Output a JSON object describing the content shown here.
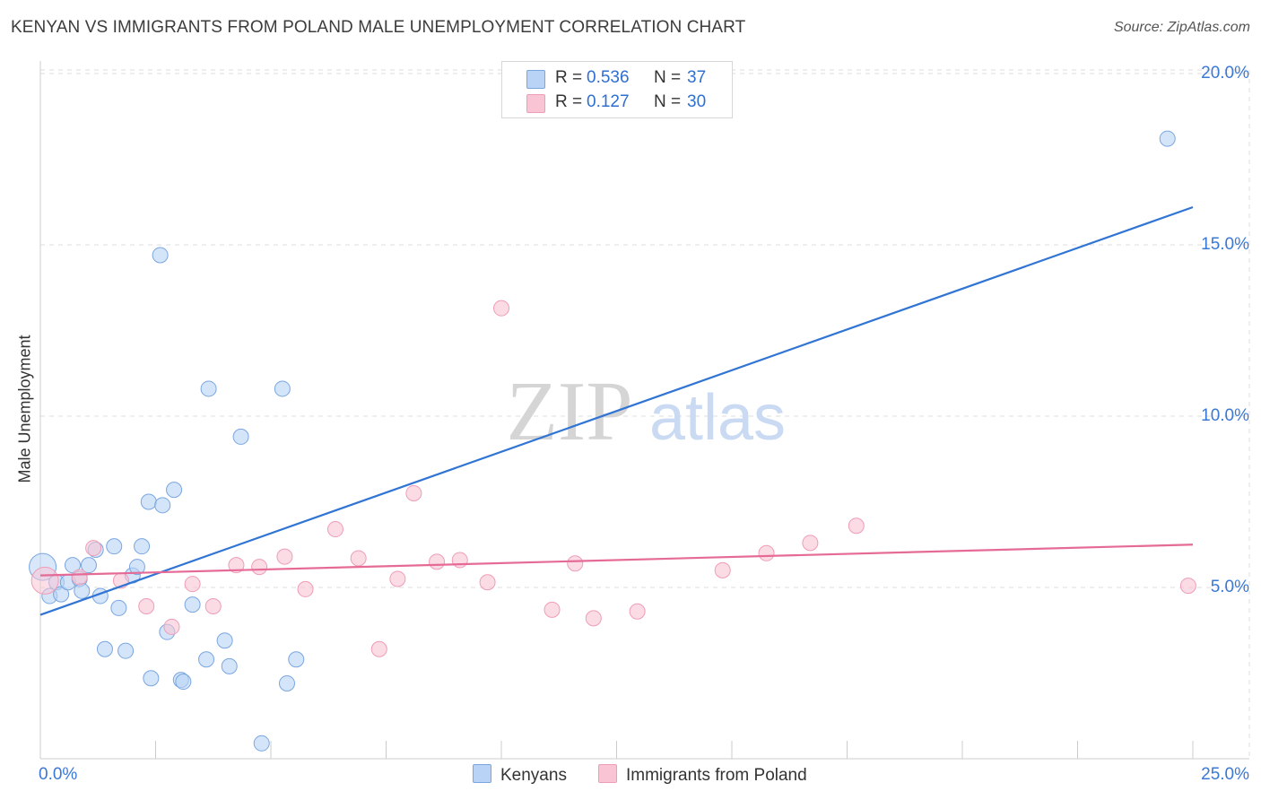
{
  "header": {
    "title": "KENYAN VS IMMIGRANTS FROM POLAND MALE UNEMPLOYMENT CORRELATION CHART",
    "source": "Source: ZipAtlas.com"
  },
  "watermark": {
    "zip": "ZIP",
    "atlas": "atlas"
  },
  "legend": {
    "rows": [
      {
        "r_label": "R =",
        "r_value": "0.536",
        "n_label": "N =",
        "n_value": "37"
      },
      {
        "r_label": "R =",
        "r_value": "0.127",
        "n_label": "N =",
        "n_value": "30"
      }
    ]
  },
  "bottom_legend": {
    "series1": "Kenyans",
    "series2": "Immigrants from Poland"
  },
  "colors": {
    "kenyans_fill": "#b8d3f5",
    "kenyans_stroke": "#7aa6e0",
    "kenyans_line": "#3074d4",
    "poland_fill": "#f9c4d4",
    "poland_stroke": "#ef9db6",
    "poland_line": "#e56b96",
    "axis_text": "#3a78d6",
    "grid": "#dddddd"
  },
  "chart_data": {
    "type": "scatter",
    "title": "KENYAN VS IMMIGRANTS FROM POLAND MALE UNEMPLOYMENT CORRELATION CHART",
    "xlabel": "",
    "ylabel": "Male Unemployment",
    "xlim": [
      0,
      25
    ],
    "ylim": [
      0,
      20
    ],
    "x_tick_labels": [
      "0.0%",
      "25.0%"
    ],
    "y_ticks": [
      5,
      10,
      15,
      20
    ],
    "y_tick_labels": [
      "5.0%",
      "10.0%",
      "15.0%",
      "20.0%"
    ],
    "grid": true,
    "series": [
      {
        "name": "Kenyans",
        "R": 0.536,
        "N": 37,
        "trend": {
          "x": [
            0,
            25
          ],
          "y": [
            4.2,
            16.1
          ]
        },
        "points": [
          {
            "x": 0.05,
            "y": 5.6,
            "big": true
          },
          {
            "x": 0.2,
            "y": 4.75
          },
          {
            "x": 0.35,
            "y": 5.15
          },
          {
            "x": 0.45,
            "y": 4.8
          },
          {
            "x": 0.6,
            "y": 5.15
          },
          {
            "x": 0.7,
            "y": 5.65
          },
          {
            "x": 0.85,
            "y": 5.25
          },
          {
            "x": 0.9,
            "y": 4.9
          },
          {
            "x": 1.05,
            "y": 5.65
          },
          {
            "x": 1.2,
            "y": 6.1
          },
          {
            "x": 1.3,
            "y": 4.75
          },
          {
            "x": 1.4,
            "y": 3.2
          },
          {
            "x": 1.6,
            "y": 6.2
          },
          {
            "x": 1.7,
            "y": 4.4
          },
          {
            "x": 1.85,
            "y": 3.15
          },
          {
            "x": 2.0,
            "y": 5.35
          },
          {
            "x": 2.1,
            "y": 5.6
          },
          {
            "x": 2.2,
            "y": 6.2
          },
          {
            "x": 2.35,
            "y": 7.5
          },
          {
            "x": 2.4,
            "y": 2.35
          },
          {
            "x": 2.6,
            "y": 14.7
          },
          {
            "x": 2.65,
            "y": 7.4
          },
          {
            "x": 2.75,
            "y": 3.7
          },
          {
            "x": 2.9,
            "y": 7.85
          },
          {
            "x": 3.05,
            "y": 2.3
          },
          {
            "x": 3.1,
            "y": 2.25
          },
          {
            "x": 3.3,
            "y": 4.5
          },
          {
            "x": 3.6,
            "y": 2.9
          },
          {
            "x": 3.65,
            "y": 10.8
          },
          {
            "x": 4.0,
            "y": 3.45
          },
          {
            "x": 4.1,
            "y": 2.7
          },
          {
            "x": 4.35,
            "y": 9.4
          },
          {
            "x": 4.8,
            "y": 0.45
          },
          {
            "x": 5.25,
            "y": 10.8
          },
          {
            "x": 5.35,
            "y": 2.2
          },
          {
            "x": 5.55,
            "y": 2.9
          },
          {
            "x": 24.45,
            "y": 18.1
          }
        ]
      },
      {
        "name": "Immigrants from Poland",
        "R": 0.127,
        "N": 30,
        "trend": {
          "x": [
            0,
            25
          ],
          "y": [
            5.35,
            6.25
          ]
        },
        "points": [
          {
            "x": 0.1,
            "y": 5.2,
            "big": true
          },
          {
            "x": 0.85,
            "y": 5.3
          },
          {
            "x": 1.15,
            "y": 6.15
          },
          {
            "x": 1.75,
            "y": 5.2
          },
          {
            "x": 2.3,
            "y": 4.45
          },
          {
            "x": 2.85,
            "y": 3.85
          },
          {
            "x": 3.3,
            "y": 5.1
          },
          {
            "x": 3.75,
            "y": 4.45
          },
          {
            "x": 4.25,
            "y": 5.65
          },
          {
            "x": 4.75,
            "y": 5.6
          },
          {
            "x": 5.3,
            "y": 5.9
          },
          {
            "x": 5.75,
            "y": 4.95
          },
          {
            "x": 6.4,
            "y": 6.7
          },
          {
            "x": 6.9,
            "y": 5.85
          },
          {
            "x": 7.35,
            "y": 3.2
          },
          {
            "x": 7.75,
            "y": 5.25
          },
          {
            "x": 8.1,
            "y": 7.75
          },
          {
            "x": 8.6,
            "y": 5.75
          },
          {
            "x": 9.1,
            "y": 5.8
          },
          {
            "x": 9.7,
            "y": 5.15
          },
          {
            "x": 10.0,
            "y": 13.15
          },
          {
            "x": 11.1,
            "y": 4.35
          },
          {
            "x": 11.6,
            "y": 5.7
          },
          {
            "x": 12.0,
            "y": 4.1
          },
          {
            "x": 12.95,
            "y": 4.3
          },
          {
            "x": 14.8,
            "y": 5.5
          },
          {
            "x": 15.75,
            "y": 6.0
          },
          {
            "x": 16.7,
            "y": 6.3
          },
          {
            "x": 17.7,
            "y": 6.8
          },
          {
            "x": 24.9,
            "y": 5.05
          }
        ]
      }
    ]
  }
}
